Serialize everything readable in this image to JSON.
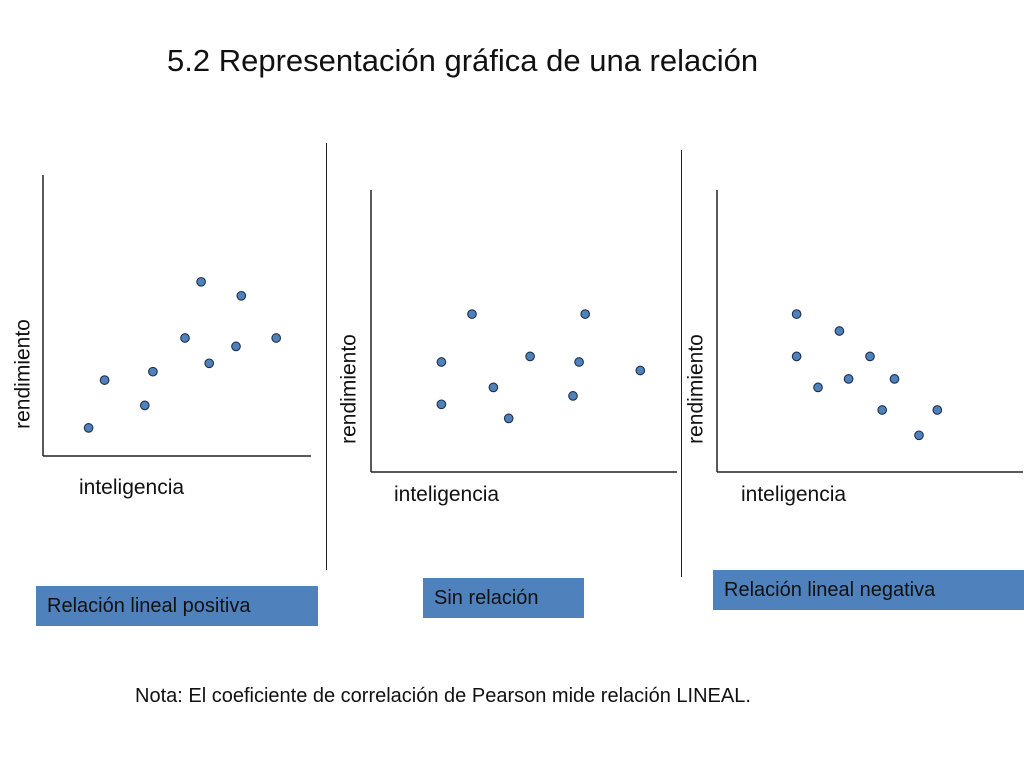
{
  "title": "5.2 Representación gráfica de una relación",
  "note": "Nota: El coeficiente de correlación de Pearson mide relación LINEAL.",
  "colors": {
    "point_fill": "#4f81bd",
    "point_stroke": "#1f2f4a",
    "caption_bg": "#4f81bd",
    "axis": "#222222"
  },
  "chart_data": [
    {
      "type": "scatter",
      "title": "",
      "xlabel": "inteligencia",
      "ylabel": "rendimiento",
      "caption": "Relación lineal positiva",
      "xlim": [
        0,
        10
      ],
      "ylim": [
        0,
        10
      ],
      "grid": false,
      "points": [
        {
          "x": 1.7,
          "y": 1.0
        },
        {
          "x": 2.3,
          "y": 2.7
        },
        {
          "x": 3.8,
          "y": 1.8
        },
        {
          "x": 4.1,
          "y": 3.0
        },
        {
          "x": 5.3,
          "y": 4.2
        },
        {
          "x": 5.9,
          "y": 6.2
        },
        {
          "x": 6.2,
          "y": 3.3
        },
        {
          "x": 7.2,
          "y": 3.9
        },
        {
          "x": 7.4,
          "y": 5.7
        },
        {
          "x": 8.7,
          "y": 4.2
        }
      ]
    },
    {
      "type": "scatter",
      "title": "",
      "xlabel": "inteligencia",
      "ylabel": "rendimiento",
      "caption": "Sin relación",
      "xlim": [
        0,
        10
      ],
      "ylim": [
        0,
        10
      ],
      "grid": false,
      "points": [
        {
          "x": 2.3,
          "y": 2.4
        },
        {
          "x": 2.3,
          "y": 3.9
        },
        {
          "x": 3.3,
          "y": 5.6
        },
        {
          "x": 4.0,
          "y": 3.0
        },
        {
          "x": 4.5,
          "y": 1.9
        },
        {
          "x": 5.2,
          "y": 4.1
        },
        {
          "x": 6.6,
          "y": 2.7
        },
        {
          "x": 6.8,
          "y": 3.9
        },
        {
          "x": 7.0,
          "y": 5.6
        },
        {
          "x": 8.8,
          "y": 3.6
        }
      ]
    },
    {
      "type": "scatter",
      "title": "",
      "xlabel": "inteligencia",
      "ylabel": "rendimiento",
      "caption": "Relación lineal negativa",
      "xlim": [
        0,
        10
      ],
      "ylim": [
        0,
        10
      ],
      "grid": false,
      "points": [
        {
          "x": 2.6,
          "y": 5.6
        },
        {
          "x": 2.6,
          "y": 4.1
        },
        {
          "x": 3.3,
          "y": 3.0
        },
        {
          "x": 4.0,
          "y": 5.0
        },
        {
          "x": 4.3,
          "y": 3.3
        },
        {
          "x": 5.0,
          "y": 4.1
        },
        {
          "x": 5.4,
          "y": 2.2
        },
        {
          "x": 5.8,
          "y": 3.3
        },
        {
          "x": 6.6,
          "y": 1.3
        },
        {
          "x": 7.2,
          "y": 2.2
        }
      ]
    }
  ]
}
